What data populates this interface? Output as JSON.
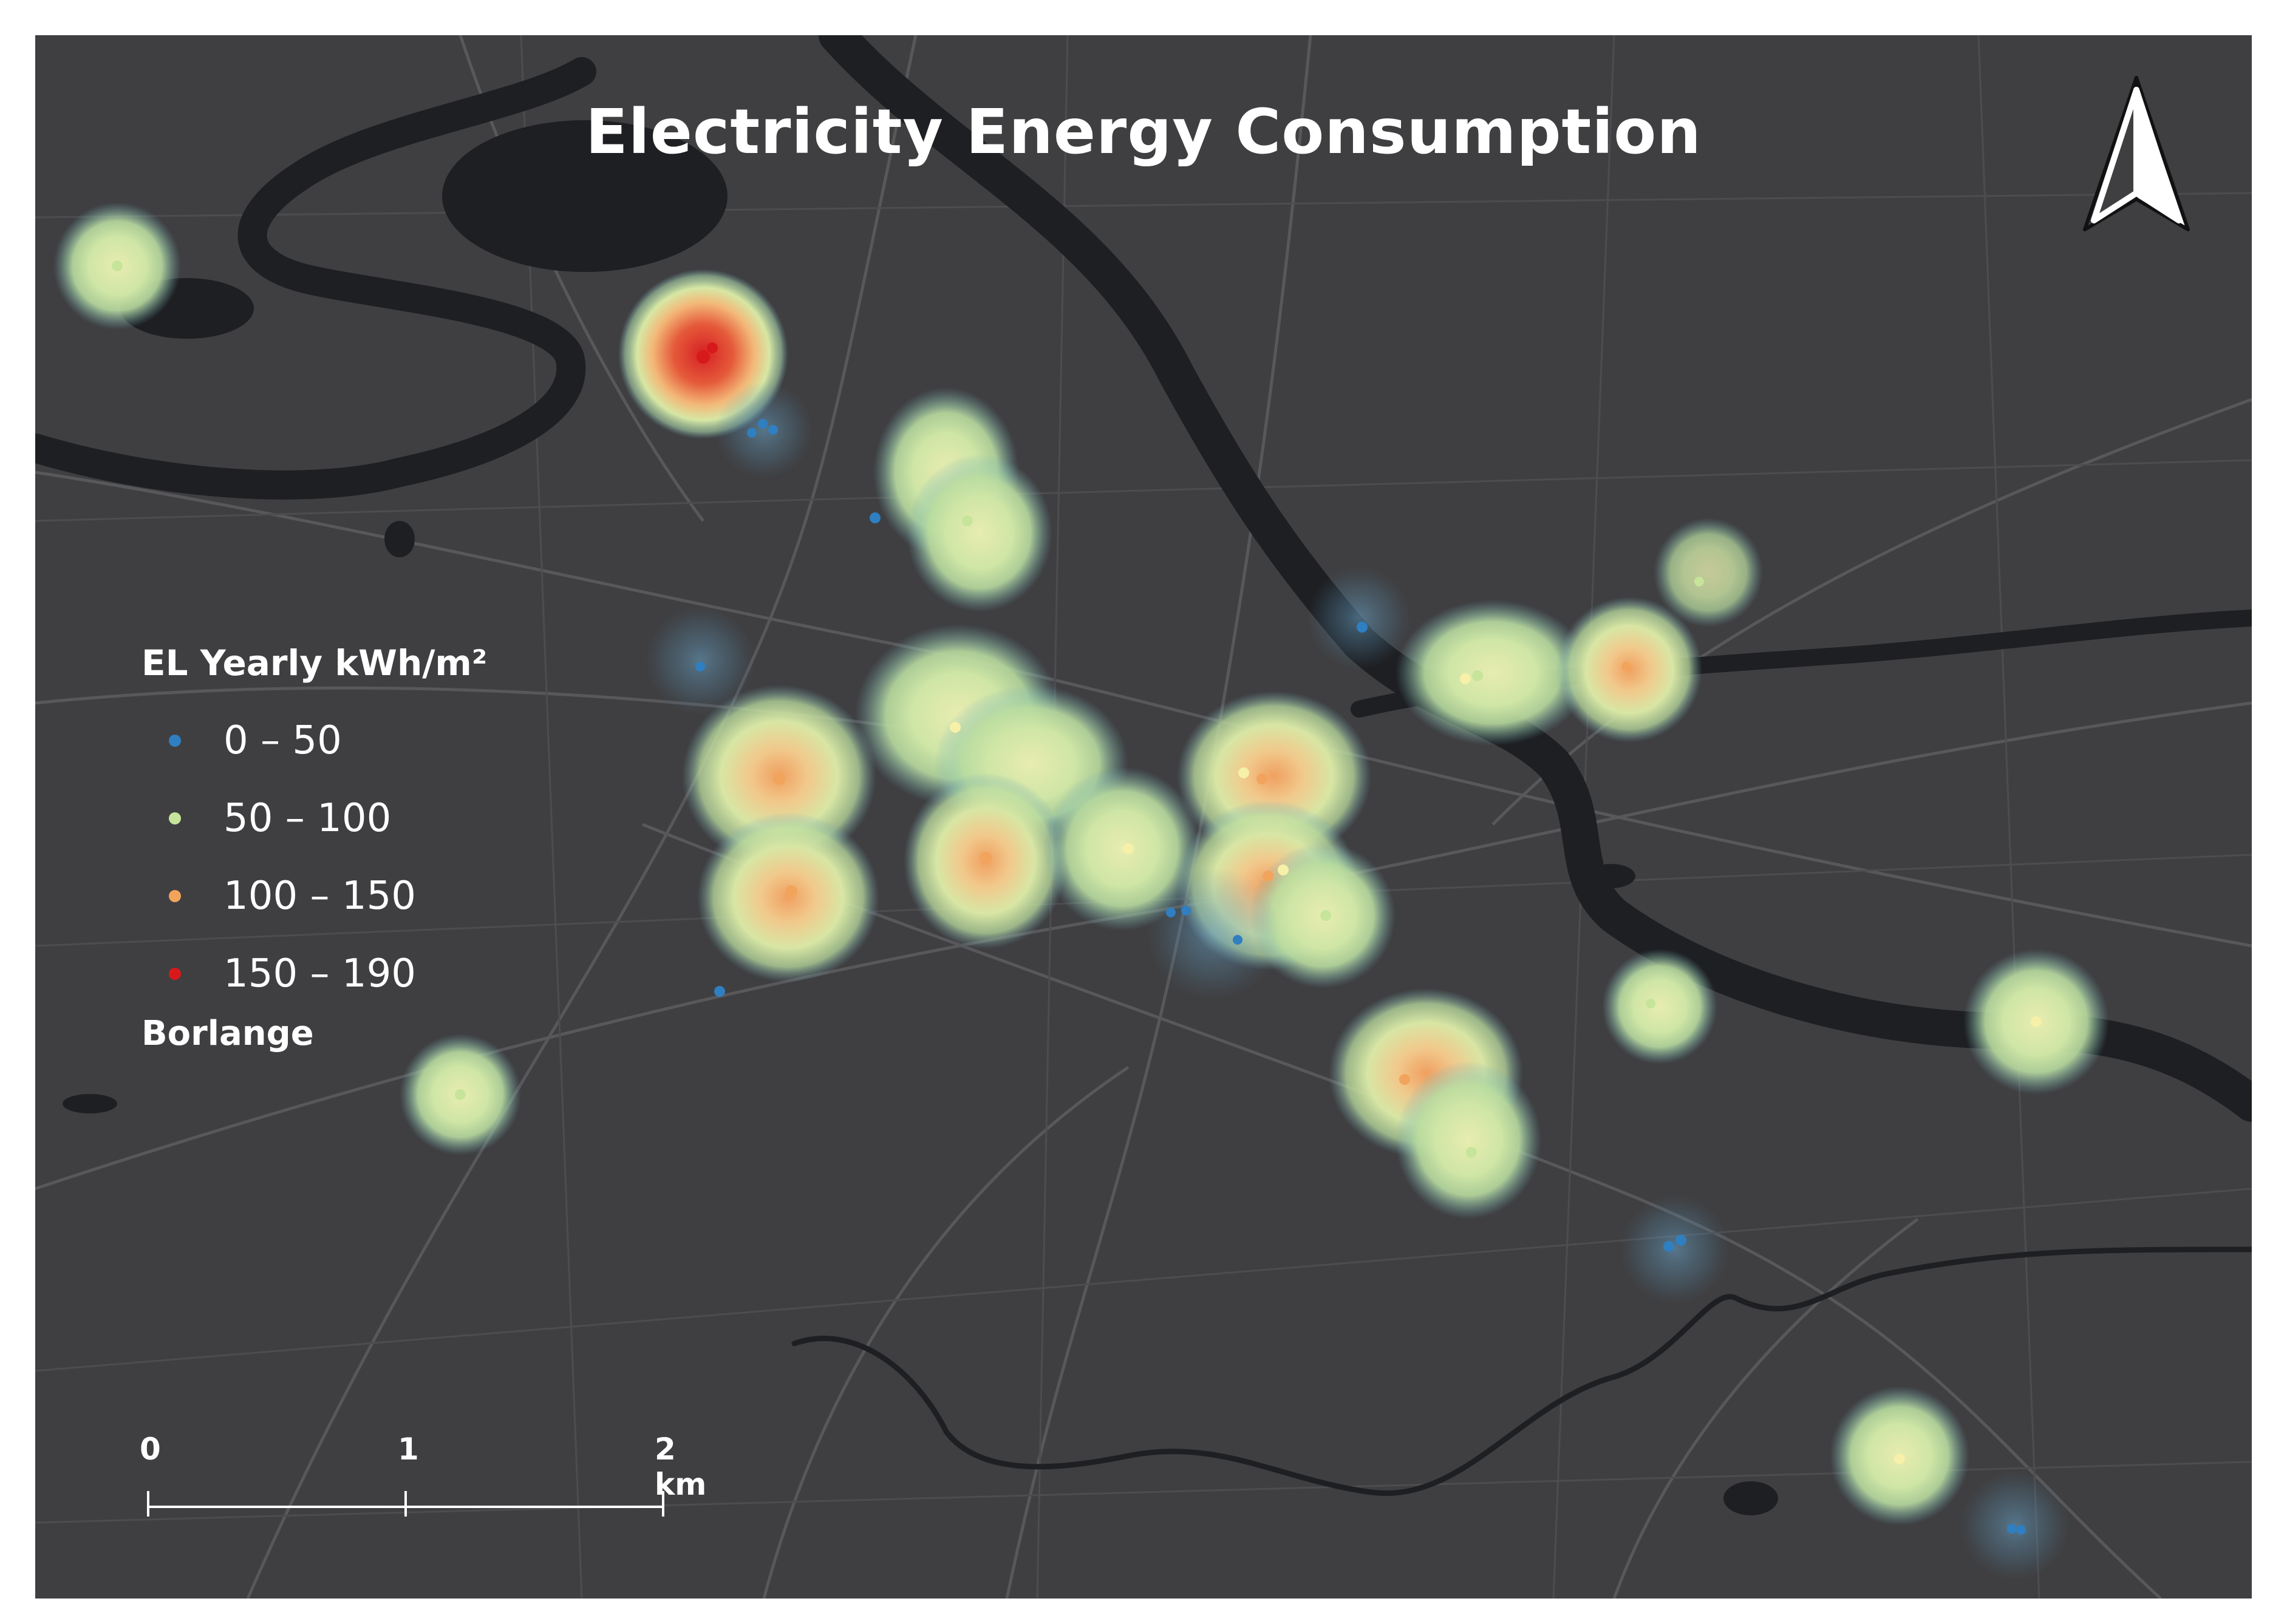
{
  "map": {
    "title": "Electricity Energy Consumption",
    "background_color": "#3f3f41",
    "water_color": "#1e1f22",
    "road_color": "#5a5a5d"
  },
  "legend": {
    "title": "EL Yearly kWh/m²",
    "classes": [
      {
        "label": "0 – 50",
        "color": "#2f7fc1"
      },
      {
        "label": "50 – 100",
        "color": "#c6e59b"
      },
      {
        "label": "100 – 150",
        "color": "#f2a45c"
      },
      {
        "label": "150 – 190",
        "color": "#d7191c"
      }
    ],
    "layer_name": "Borlange"
  },
  "scale_bar": {
    "labels": [
      "0",
      "1",
      "2 km"
    ]
  },
  "north_arrow": {
    "icon": "north-arrow-icon"
  }
}
